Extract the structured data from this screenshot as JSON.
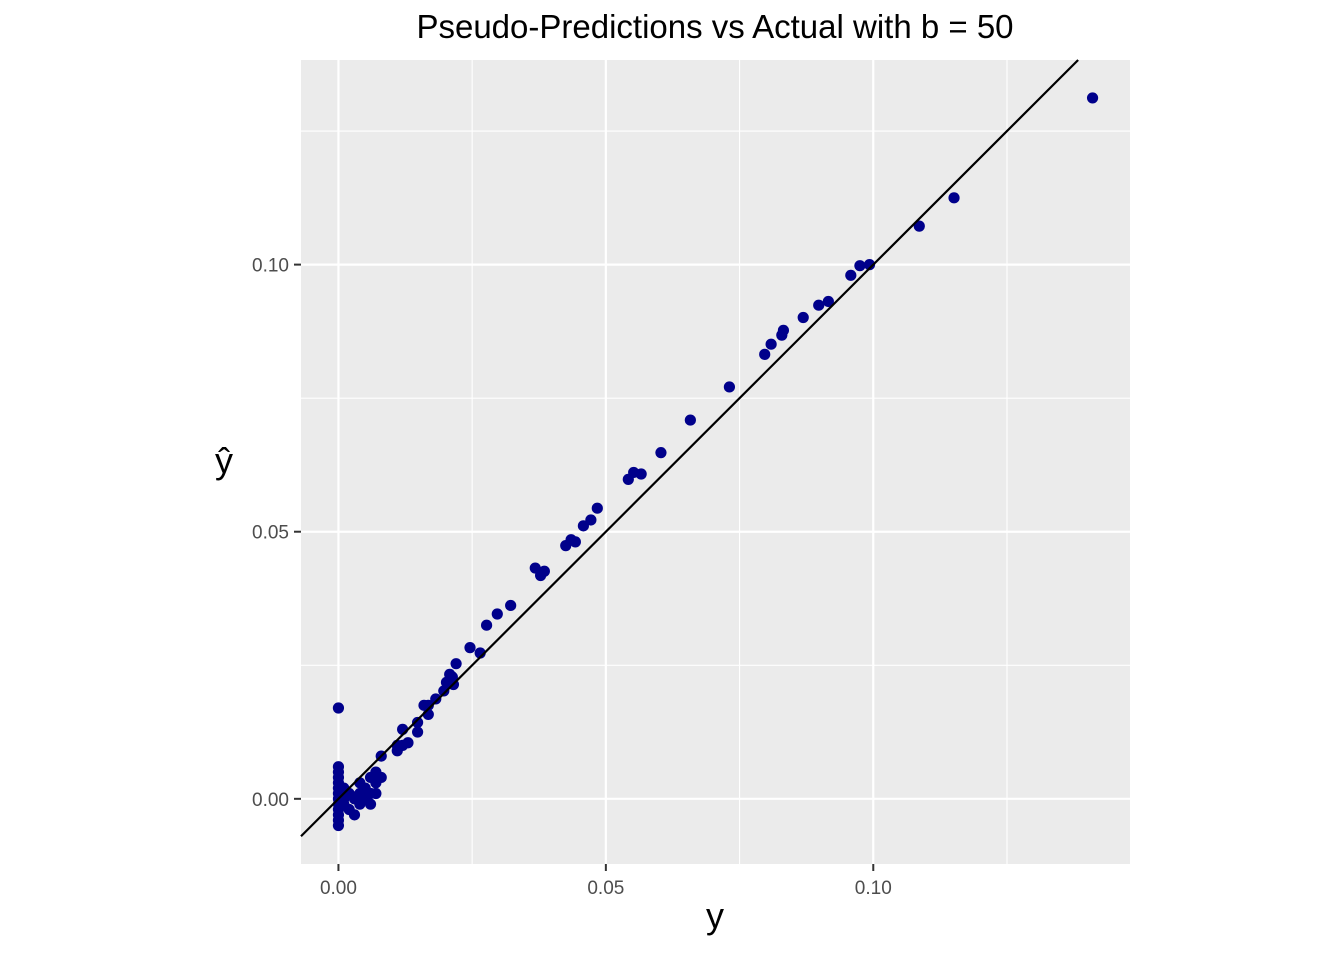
{
  "chart_data": {
    "type": "scatter",
    "title": "Pseudo-Predictions vs Actual with b = 50",
    "xlabel": "y",
    "ylabel": "ŷ",
    "xlim": [
      -0.007,
      0.148
    ],
    "ylim": [
      -0.0122,
      0.1383
    ],
    "x_ticks": [
      0.0,
      0.05,
      0.1
    ],
    "x_tick_labels": [
      "0.00",
      "0.05",
      "0.10"
    ],
    "y_ticks": [
      0.0,
      0.05,
      0.1
    ],
    "y_tick_labels": [
      "0.00",
      "0.05",
      "0.10"
    ],
    "grid": true,
    "reference_line": {
      "slope": 1,
      "intercept": 0
    },
    "colors": {
      "panel_background": "#ebebeb",
      "grid": "#ffffff",
      "points": "#00008b",
      "reference_line": "#000000"
    },
    "series": [
      {
        "points": [
          [
            0.0,
            0.017
          ],
          [
            0.0,
            0.006
          ],
          [
            0.0,
            0.005
          ],
          [
            0.0,
            0.004
          ],
          [
            0.0,
            0.003
          ],
          [
            0.0,
            0.002
          ],
          [
            0.0,
            0.001
          ],
          [
            0.0,
            0.0
          ],
          [
            0.0,
            -0.001
          ],
          [
            0.0,
            -0.002
          ],
          [
            0.0,
            -0.003
          ],
          [
            0.0,
            -0.004
          ],
          [
            0.0,
            -0.005
          ],
          [
            0.001,
            0.002
          ],
          [
            0.001,
            0.0
          ],
          [
            0.001,
            -0.001
          ],
          [
            0.002,
            0.001
          ],
          [
            0.002,
            -0.002
          ],
          [
            0.003,
            0.0
          ],
          [
            0.003,
            -0.003
          ],
          [
            0.004,
            0.003
          ],
          [
            0.004,
            0.001
          ],
          [
            0.004,
            -0.001
          ],
          [
            0.005,
            0.002
          ],
          [
            0.005,
            0.0
          ],
          [
            0.006,
            0.004
          ],
          [
            0.006,
            0.001
          ],
          [
            0.006,
            -0.001
          ],
          [
            0.007,
            0.005
          ],
          [
            0.007,
            0.003
          ],
          [
            0.007,
            0.001
          ],
          [
            0.008,
            0.008
          ],
          [
            0.008,
            0.004
          ],
          [
            0.011,
            0.01
          ],
          [
            0.011,
            0.009
          ],
          [
            0.012,
            0.01
          ],
          [
            0.012,
            0.013
          ],
          [
            0.013,
            0.0105
          ],
          [
            0.0148,
            0.0143
          ],
          [
            0.0148,
            0.0125
          ],
          [
            0.016,
            0.0175
          ],
          [
            0.0168,
            0.0158
          ],
          [
            0.0168,
            0.0175
          ],
          [
            0.0182,
            0.0187
          ],
          [
            0.0197,
            0.0202
          ],
          [
            0.0202,
            0.0218
          ],
          [
            0.0208,
            0.0233
          ],
          [
            0.0213,
            0.0228
          ],
          [
            0.0215,
            0.0214
          ],
          [
            0.022,
            0.0253
          ],
          [
            0.0246,
            0.0283
          ],
          [
            0.0265,
            0.0273
          ],
          [
            0.0277,
            0.0325
          ],
          [
            0.0297,
            0.0346
          ],
          [
            0.0322,
            0.0362
          ],
          [
            0.0368,
            0.0432
          ],
          [
            0.0378,
            0.0418
          ],
          [
            0.0385,
            0.0426
          ],
          [
            0.0425,
            0.0474
          ],
          [
            0.0435,
            0.0485
          ],
          [
            0.0443,
            0.0481
          ],
          [
            0.0458,
            0.0511
          ],
          [
            0.0472,
            0.0522
          ],
          [
            0.0484,
            0.0544
          ],
          [
            0.0542,
            0.0598
          ],
          [
            0.0552,
            0.0611
          ],
          [
            0.0566,
            0.0608
          ],
          [
            0.0603,
            0.0648
          ],
          [
            0.0658,
            0.0709
          ],
          [
            0.0731,
            0.0771
          ],
          [
            0.0797,
            0.0832
          ],
          [
            0.0809,
            0.0851
          ],
          [
            0.0829,
            0.0868
          ],
          [
            0.0832,
            0.0877
          ],
          [
            0.0869,
            0.0901
          ],
          [
            0.0898,
            0.0924
          ],
          [
            0.0916,
            0.0931
          ],
          [
            0.0958,
            0.098
          ],
          [
            0.0975,
            0.0998
          ],
          [
            0.0993,
            0.1
          ],
          [
            0.1086,
            0.1072
          ],
          [
            0.1151,
            0.1125
          ],
          [
            0.141,
            0.1312
          ]
        ]
      }
    ]
  }
}
